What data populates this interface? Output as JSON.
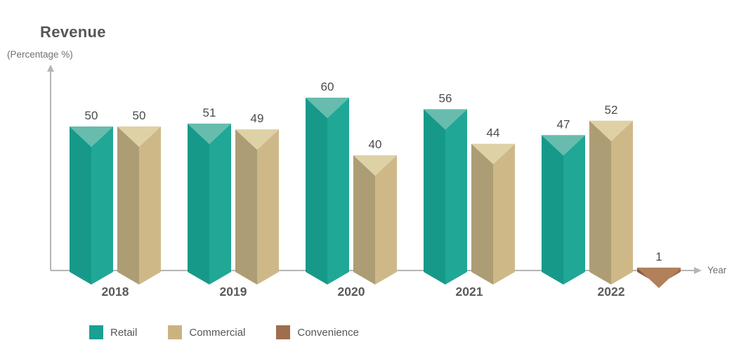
{
  "chart_data": {
    "type": "bar",
    "style": "3d-prism-infographic",
    "title": "Revenue",
    "ylabel": "(Percentage %)",
    "xlabel": "Year",
    "categories": [
      "2018",
      "2019",
      "2020",
      "2021",
      "2022"
    ],
    "series": [
      {
        "name": "Retail",
        "values": [
          50,
          51,
          60,
          56,
          47
        ],
        "color_left": "#17998a",
        "color_right": "#20a796",
        "color_top": "#67bcad",
        "swatch": "#1aa093"
      },
      {
        "name": "Commercial",
        "values": [
          50,
          49,
          40,
          44,
          52
        ],
        "color_left": "#ac9d74",
        "color_right": "#cfb888",
        "color_top": "#ded1a6",
        "swatch": "#cbb380"
      },
      {
        "name": "Convenience",
        "values": [
          null,
          null,
          null,
          null,
          1
        ],
        "color_left": "#8a5a3c",
        "color_right": "#a06f4b",
        "color_top": "#b2805a",
        "swatch": "#9e6f4d"
      }
    ],
    "ylim": [
      0,
      65
    ],
    "grid": false,
    "y_ticks": [],
    "value_labels": true,
    "legend_position": "bottom",
    "axis_color": "#b5b5b6"
  }
}
